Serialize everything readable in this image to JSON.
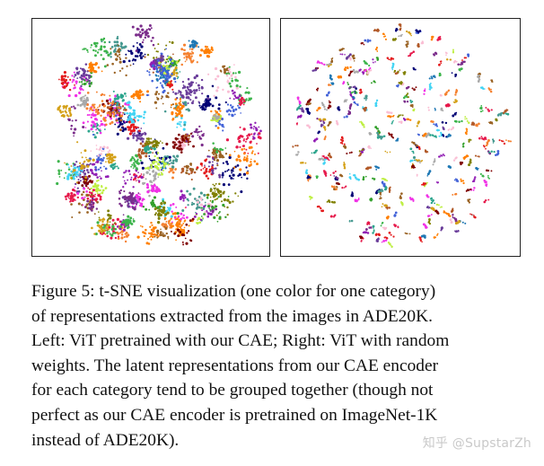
{
  "figure": {
    "panels": [
      {
        "id": "left",
        "description_key": "vit-cae-pretrained"
      },
      {
        "id": "right",
        "description_key": "vit-random-weights"
      }
    ],
    "colors": [
      "#e6194b",
      "#3cb44b",
      "#4363d8",
      "#f58231",
      "#911eb4",
      "#42d4f4",
      "#f032e6",
      "#bfef45",
      "#fabed4",
      "#469990",
      "#9a6324",
      "#800000",
      "#808000",
      "#000075",
      "#a9a9a9",
      "#6a3d9a",
      "#1f78b4",
      "#33a02c",
      "#e31a1c",
      "#ff7f00",
      "#b15928",
      "#2ca58d",
      "#d4a017",
      "#7b2d8b"
    ],
    "caption_lines": [
      "Figure 5: t-SNE visualization (one color for one category)",
      "of representations extracted from the images in ADE20K.",
      "Left: ViT pretrained with our CAE; Right: ViT with random",
      "weights. The latent representations from our CAE encoder",
      "for each category tend to be grouped together (though not",
      "perfect as our CAE encoder is pretrained on ImageNet-1K",
      "instead of ADE20K)."
    ]
  },
  "watermark": {
    "text": "知乎 @SupstarZh"
  }
}
